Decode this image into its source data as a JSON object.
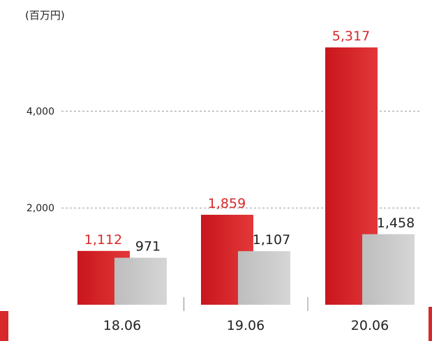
{
  "chart_data": {
    "type": "bar",
    "unit_label": "(百万円)",
    "categories": [
      "18.06",
      "19.06",
      "20.06"
    ],
    "series": [
      {
        "values": [
          1112,
          1859,
          5317
        ],
        "labels": [
          "1,112",
          "1,859",
          "5,317"
        ],
        "color": "#d7282a"
      },
      {
        "values": [
          971,
          1107,
          1458
        ],
        "labels": [
          "971",
          "1,107",
          "1,458"
        ],
        "color": "#c9c9c9"
      }
    ],
    "yticks": [
      {
        "value": 2000,
        "label": "2,000"
      },
      {
        "value": 4000,
        "label": "4,000"
      }
    ],
    "ylim": [
      0,
      5317
    ],
    "grid": "dashed",
    "accent_color": "#d7282a"
  }
}
